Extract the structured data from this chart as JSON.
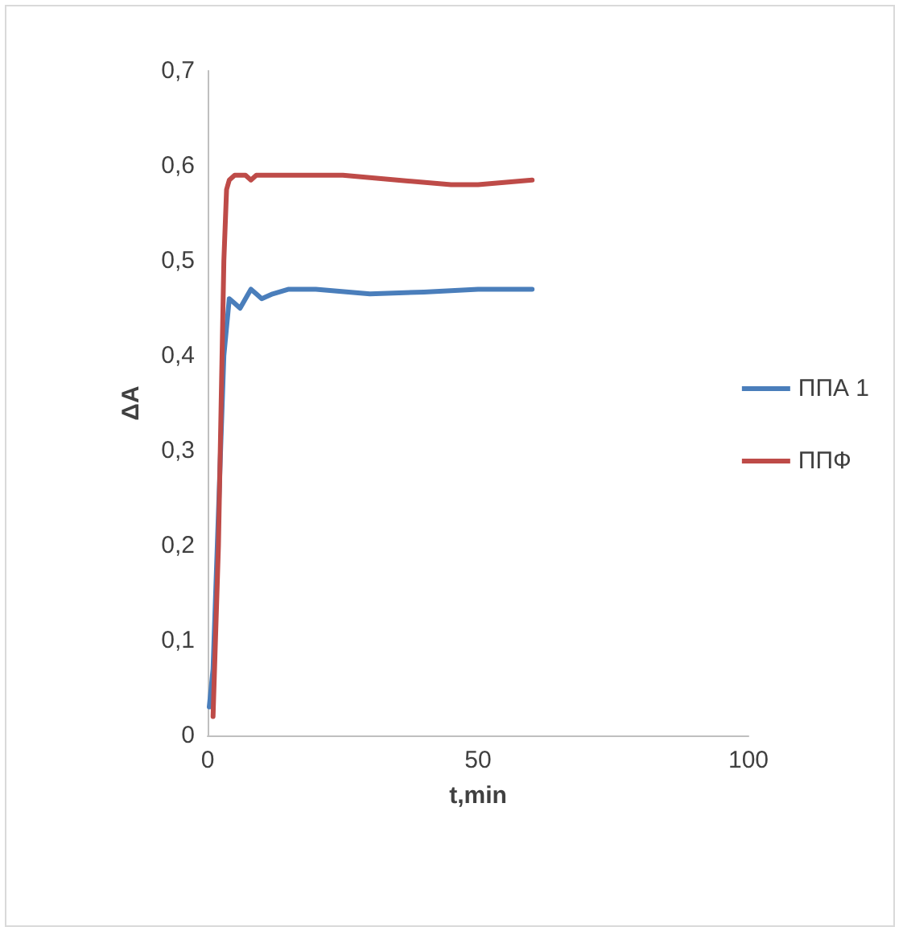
{
  "chart_data": {
    "type": "line",
    "xlabel": "t,min",
    "ylabel": "ΔA",
    "xlim": [
      0,
      100
    ],
    "xticks": [
      0,
      50,
      100
    ],
    "ylim": [
      0,
      0.7
    ],
    "yticks": [
      {
        "value": 0,
        "label": "0"
      },
      {
        "value": 0.1,
        "label": "0,1"
      },
      {
        "value": 0.2,
        "label": "0,2"
      },
      {
        "value": 0.3,
        "label": "0,3"
      },
      {
        "value": 0.4,
        "label": "0,4"
      },
      {
        "value": 0.5,
        "label": "0,5"
      },
      {
        "value": 0.6,
        "label": "0,6"
      },
      {
        "value": 0.7,
        "label": "0,7"
      }
    ],
    "grid": false,
    "legend": "right",
    "marker": "none",
    "line_style": "solid",
    "series": [
      {
        "name": "ППА 1",
        "color": "#4a7ebb",
        "x": [
          0.3,
          1,
          3,
          4,
          5,
          6,
          7,
          8,
          9,
          10,
          12,
          15,
          20,
          30,
          40,
          50,
          60
        ],
        "values": [
          0.03,
          0.07,
          0.4,
          0.46,
          0.455,
          0.45,
          0.46,
          0.47,
          0.465,
          0.46,
          0.465,
          0.47,
          0.47,
          0.465,
          0.467,
          0.47,
          0.47
        ]
      },
      {
        "name": "ППФ",
        "color": "#be4b48",
        "x": [
          1,
          2,
          3,
          3.5,
          4,
          5,
          6,
          7,
          8,
          9,
          10,
          15,
          25,
          35,
          45,
          50,
          60
        ],
        "values": [
          0.02,
          0.2,
          0.5,
          0.575,
          0.585,
          0.59,
          0.59,
          0.59,
          0.585,
          0.59,
          0.59,
          0.59,
          0.59,
          0.585,
          0.58,
          0.58,
          0.585
        ]
      }
    ]
  }
}
